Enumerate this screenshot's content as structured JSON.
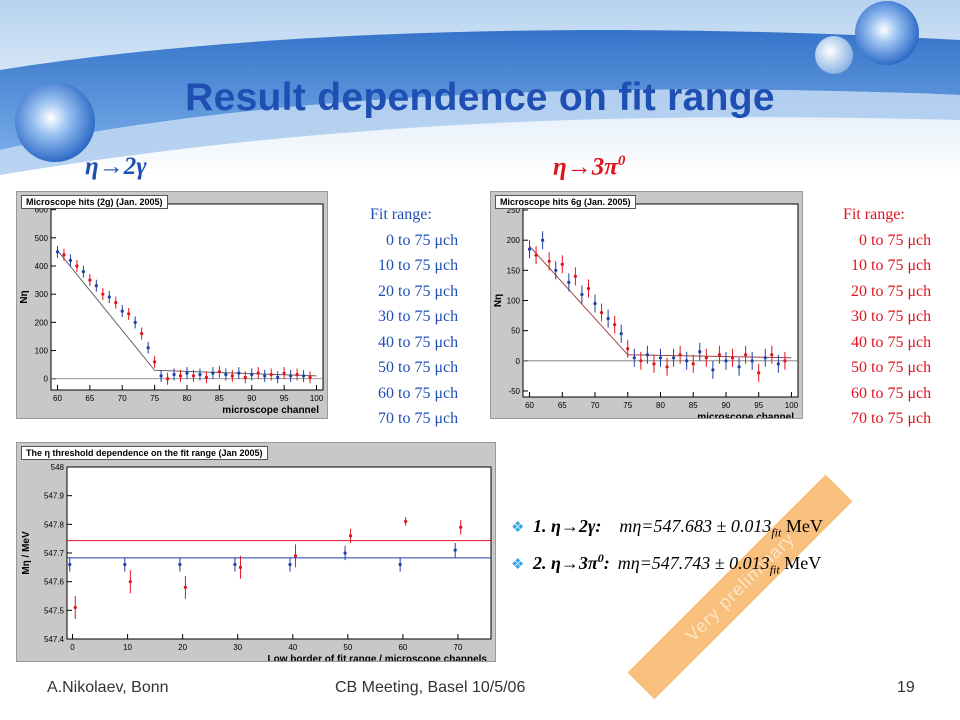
{
  "title": "Result dependence on fit range",
  "labels": {
    "left": "η→2γ",
    "right": "η→3π",
    "right_sup": "0"
  },
  "plot1": {
    "header": "Microscope hits (2g) (Jan. 2005)",
    "ylabel": "Nη",
    "xlabel": "microscope channel",
    "xticks": [
      "60",
      "65",
      "70",
      "75",
      "80",
      "85",
      "90",
      "95",
      "100"
    ],
    "yticks": [
      "0",
      "100",
      "200",
      "300",
      "400",
      "500",
      "600"
    ]
  },
  "plot2": {
    "header": "Microscope hits 6g (Jan. 2005)",
    "ylabel": "Nη",
    "xlabel": "microscope channel",
    "xticks": [
      "60",
      "65",
      "70",
      "75",
      "80",
      "85",
      "90",
      "95",
      "100"
    ],
    "yticks": [
      "-50",
      "0",
      "50",
      "100",
      "150",
      "200",
      "250"
    ]
  },
  "plot3": {
    "header": "The η threshold dependence on the fit range (Jan 2005)",
    "ylabel": "Mη / MeV",
    "xlabel": "Low border of fit range / microscope channels",
    "xticks": [
      "0",
      "10",
      "20",
      "30",
      "40",
      "50",
      "60",
      "70"
    ],
    "yticks": [
      "547.4",
      "547.5",
      "547.6",
      "547.7",
      "547.8",
      "547.9",
      "548"
    ]
  },
  "fit_ranges": {
    "heading": "Fit range:",
    "items": [
      "0 to 75 μch",
      "10 to 75 μch",
      "20 to 75 μch",
      "30 to 75 μch",
      "40 to 75 μch",
      "50 to 75 μch",
      "60 to 75 μch",
      "70 to 75 μch"
    ]
  },
  "results": [
    {
      "label": "1. η→2γ:",
      "mass": "mη=547.683 ± 0.013",
      "sub": "fit",
      "unit": "MeV"
    },
    {
      "label": "2. η→3π",
      "label_sup": "0",
      "label_end": ":",
      "mass": "mη=547.743 ± 0.013",
      "sub": "fit",
      "unit": "MeV"
    }
  ],
  "stamp": "Very preliminary",
  "footer": {
    "author": "A.Nikolaev, Bonn",
    "meeting": "CB Meeting, Basel 10/5/06",
    "page": "19"
  },
  "colors": {
    "title": "#1f4fb3",
    "blue": "#1f4fb3",
    "red": "#e0141f",
    "banner": "#3d7fd1",
    "stamp": "#f7aa50"
  },
  "chart_data": [
    {
      "type": "scatter",
      "title": "Microscope hits (2g) (Jan. 2005)",
      "xlabel": "microscope channel",
      "ylabel": "Nη",
      "xlim": [
        59,
        101
      ],
      "ylim": [
        -40,
        620
      ],
      "series": [
        {
          "values_xy": [
            [
              60,
              450
            ],
            [
              61,
              440
            ],
            [
              62,
              420
            ],
            [
              63,
              400
            ],
            [
              64,
              380
            ],
            [
              65,
              350
            ],
            [
              66,
              330
            ],
            [
              67,
              300
            ],
            [
              68,
              290
            ],
            [
              69,
              270
            ],
            [
              70,
              240
            ],
            [
              71,
              230
            ],
            [
              72,
              200
            ],
            [
              73,
              160
            ],
            [
              74,
              110
            ],
            [
              75,
              60
            ],
            [
              76,
              10
            ],
            [
              77,
              0
            ],
            [
              78,
              15
            ],
            [
              79,
              10
            ],
            [
              80,
              20
            ],
            [
              81,
              10
            ],
            [
              82,
              15
            ],
            [
              83,
              5
            ],
            [
              84,
              20
            ],
            [
              85,
              25
            ],
            [
              86,
              15
            ],
            [
              87,
              10
            ],
            [
              88,
              20
            ],
            [
              89,
              5
            ],
            [
              90,
              15
            ],
            [
              91,
              20
            ],
            [
              92,
              10
            ],
            [
              93,
              15
            ],
            [
              94,
              5
            ],
            [
              95,
              20
            ],
            [
              96,
              10
            ],
            [
              97,
              15
            ],
            [
              98,
              10
            ],
            [
              99,
              5
            ]
          ]
        }
      ]
    },
    {
      "type": "scatter",
      "title": "Microscope hits 6g (Jan. 2005)",
      "xlabel": "microscope channel",
      "ylabel": "Nη",
      "xlim": [
        59,
        101
      ],
      "ylim": [
        -60,
        260
      ],
      "series": [
        {
          "values_xy": [
            [
              60,
              185
            ],
            [
              61,
              175
            ],
            [
              62,
              200
            ],
            [
              63,
              165
            ],
            [
              64,
              150
            ],
            [
              65,
              160
            ],
            [
              66,
              130
            ],
            [
              67,
              140
            ],
            [
              68,
              110
            ],
            [
              69,
              120
            ],
            [
              70,
              95
            ],
            [
              71,
              80
            ],
            [
              72,
              70
            ],
            [
              73,
              60
            ],
            [
              74,
              45
            ],
            [
              75,
              20
            ],
            [
              76,
              5
            ],
            [
              77,
              0
            ],
            [
              78,
              10
            ],
            [
              79,
              -5
            ],
            [
              80,
              5
            ],
            [
              81,
              -10
            ],
            [
              82,
              5
            ],
            [
              83,
              10
            ],
            [
              84,
              0
            ],
            [
              85,
              -5
            ],
            [
              86,
              15
            ],
            [
              87,
              5
            ],
            [
              88,
              -15
            ],
            [
              89,
              10
            ],
            [
              90,
              0
            ],
            [
              91,
              5
            ],
            [
              92,
              -10
            ],
            [
              93,
              10
            ],
            [
              94,
              0
            ],
            [
              95,
              -20
            ],
            [
              96,
              5
            ],
            [
              97,
              10
            ],
            [
              98,
              -5
            ],
            [
              99,
              0
            ]
          ]
        }
      ]
    },
    {
      "type": "scatter",
      "title": "The η threshold dependence on the fit range (Jan 2005)",
      "xlabel": "Low border of fit range / microscope channels",
      "ylabel": "Mη / MeV",
      "xlim": [
        -1,
        76
      ],
      "ylim": [
        547.4,
        548.0
      ],
      "series": [
        {
          "name": "η→2γ",
          "values_xy": [
            [
              0,
              547.66
            ],
            [
              10,
              547.66
            ],
            [
              20,
              547.66
            ],
            [
              30,
              547.66
            ],
            [
              40,
              547.66
            ],
            [
              50,
              547.7
            ],
            [
              60,
              547.66
            ],
            [
              70,
              547.71
            ]
          ],
          "errors": [
            0.025,
            0.025,
            0.025,
            0.025,
            0.025,
            0.025,
            0.025,
            0.025
          ],
          "fit": 547.683
        },
        {
          "name": "η→3π0",
          "values_xy": [
            [
              0,
              547.51
            ],
            [
              10,
              547.6
            ],
            [
              20,
              547.58
            ],
            [
              30,
              547.65
            ],
            [
              40,
              547.69
            ],
            [
              50,
              547.76
            ],
            [
              60,
              547.81
            ],
            [
              70,
              547.79
            ]
          ],
          "errors": [
            0.04,
            0.04,
            0.04,
            0.04,
            0.04,
            0.025,
            0.015,
            0.025
          ],
          "fit": 547.743
        }
      ]
    }
  ]
}
